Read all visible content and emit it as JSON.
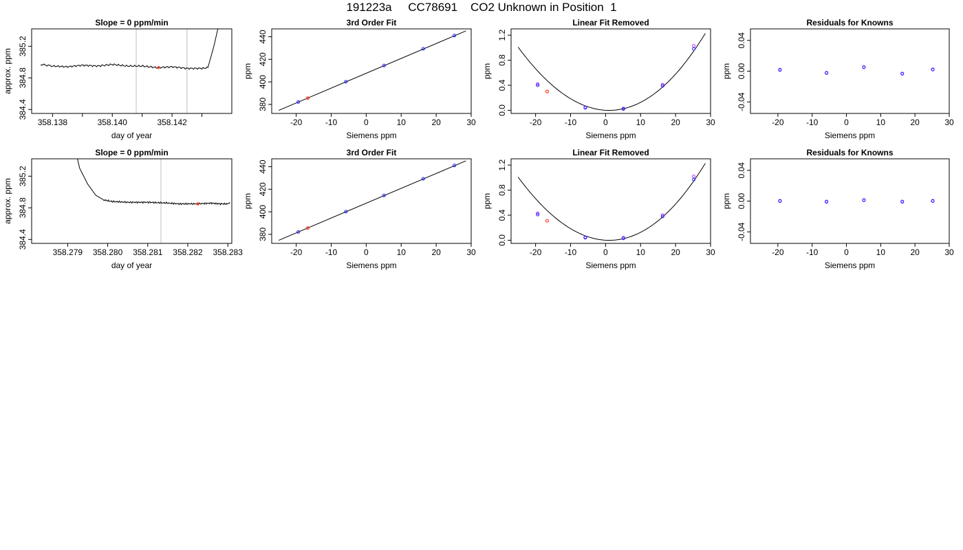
{
  "title": "191223a     CC78691    CO2 Unknown in Position  1",
  "colors": {
    "line": "#000000",
    "known": "#1f1fff",
    "unknown": "#ff3b1f",
    "fit2": "#b030ff",
    "vline": "#bebebe"
  },
  "chart_data": [
    {
      "type": "line",
      "title": "Slope =  0  ppm/min",
      "xlabel": "day of year",
      "ylabel": "approx. ppm",
      "xlim": [
        358.1373,
        358.144
      ],
      "ylim": [
        384.35,
        385.42
      ],
      "xticks": [
        358.138,
        358.139,
        358.14,
        358.141,
        358.142,
        358.143
      ],
      "xtick_labels": [
        "358.138",
        "",
        "358.140",
        "",
        "358.142",
        ""
      ],
      "yticks": [
        384.4,
        384.8,
        385.2
      ],
      "ytick_labels": [
        "384.4",
        "384.8",
        "385.2"
      ],
      "vlines": [
        358.1408,
        358.1425
      ],
      "trace": [
        [
          358.1376,
          384.97
        ],
        [
          358.138,
          384.95
        ],
        [
          358.1385,
          384.94
        ],
        [
          358.139,
          384.96
        ],
        [
          358.1395,
          384.95
        ],
        [
          358.14,
          384.97
        ],
        [
          358.1405,
          384.95
        ],
        [
          358.141,
          384.95
        ],
        [
          358.1415,
          384.93
        ],
        [
          358.142,
          384.94
        ],
        [
          358.1425,
          384.92
        ],
        [
          358.143,
          384.92
        ],
        [
          358.1432,
          384.93
        ],
        [
          358.1434,
          385.2
        ],
        [
          358.14355,
          385.45
        ]
      ],
      "unknown_point": [
        358.14155,
        384.93
      ]
    },
    {
      "type": "scatter",
      "title": "3rd Order Fit",
      "xlabel": "Siemens ppm",
      "ylabel": "ppm",
      "xlim": [
        -27,
        30
      ],
      "ylim": [
        372,
        447
      ],
      "xticks": [
        -20,
        -10,
        0,
        10,
        20,
        30
      ],
      "xtick_labels": [
        "-20",
        "-10",
        "0",
        "10",
        "20",
        "30"
      ],
      "yticks": [
        380,
        400,
        420,
        440
      ],
      "ytick_labels": [
        "380",
        "400",
        "420",
        "440"
      ],
      "fit_line": [
        [
          -25,
          374.7
        ],
        [
          28.5,
          445.2
        ]
      ],
      "knowns": [
        [
          -19.4,
          382.1
        ],
        [
          -5.8,
          400.1
        ],
        [
          5.1,
          414.5
        ],
        [
          16.3,
          429.3
        ],
        [
          25.2,
          441.1
        ]
      ],
      "unknown": [
        [
          -16.7,
          385.6
        ]
      ]
    },
    {
      "type": "scatter",
      "title": "Linear Fit Removed",
      "xlabel": "Siemens ppm",
      "ylabel": "ppm",
      "xlim": [
        -27,
        30
      ],
      "ylim": [
        -0.05,
        1.3
      ],
      "xticks": [
        -20,
        -10,
        0,
        10,
        20,
        30
      ],
      "xtick_labels": [
        "-20",
        "-10",
        "0",
        "10",
        "20",
        "30"
      ],
      "yticks": [
        0.0,
        0.4,
        0.8,
        1.2
      ],
      "ytick_labels": [
        "0.0",
        "0.4",
        "0.8",
        "1.2"
      ],
      "curve_coef": [
        0.001,
        -0.0032,
        0.00155,
        2.6e-06
      ],
      "curve_x": [
        -25,
        28.5
      ],
      "knowns": [
        [
          -19.4,
          0.4
        ],
        [
          -5.8,
          0.04
        ],
        [
          5.1,
          0.02
        ],
        [
          16.3,
          0.39
        ],
        [
          25.2,
          0.98
        ]
      ],
      "knowns_alt": [
        [
          -19.4,
          0.42
        ],
        [
          -5.8,
          0.05
        ],
        [
          5.1,
          0.03
        ],
        [
          16.3,
          0.41
        ],
        [
          25.2,
          1.03
        ]
      ],
      "unknown": [
        [
          -16.7,
          0.3
        ]
      ]
    },
    {
      "type": "scatter",
      "title": "Residuals for Knowns",
      "xlabel": "Siemens ppm",
      "ylabel": "ppm",
      "xlim": [
        -28,
        30
      ],
      "ylim": [
        -0.055,
        0.055
      ],
      "xticks": [
        -20,
        -10,
        0,
        10,
        20,
        30
      ],
      "xtick_labels": [
        "-20",
        "-10",
        "0",
        "10",
        "20",
        "30"
      ],
      "yticks": [
        -0.04,
        0.0,
        0.04
      ],
      "ytick_labels": [
        "-0.04",
        "0.00",
        "0.04"
      ],
      "knowns": [
        [
          -19.4,
          0.0015
        ],
        [
          -5.8,
          -0.0025
        ],
        [
          5.1,
          0.005
        ],
        [
          16.3,
          -0.0035
        ],
        [
          25.2,
          0.002
        ]
      ],
      "knowns_alt": [
        [
          -19.4,
          0.002
        ],
        [
          -5.8,
          -0.002
        ],
        [
          5.1,
          0.0055
        ],
        [
          16.3,
          -0.003
        ],
        [
          25.2,
          0.0025
        ]
      ]
    },
    {
      "type": "line",
      "title": "Slope =  0  ppm/min",
      "xlabel": "day of year",
      "ylabel": "approx. ppm",
      "xlim": [
        358.2781,
        358.2831
      ],
      "ylim": [
        384.35,
        385.42
      ],
      "xticks": [
        358.279,
        358.28,
        358.281,
        358.282,
        358.283
      ],
      "xtick_labels": [
        "358.279",
        "358.280",
        "358.281",
        "358.282",
        "358.283"
      ],
      "yticks": [
        384.4,
        384.8,
        385.2
      ],
      "ytick_labels": [
        "384.4",
        "384.8",
        "385.2"
      ],
      "vlines": [
        358.28133,
        358.2831
      ],
      "trace": [
        [
          358.27923,
          385.45
        ],
        [
          358.2793,
          385.3
        ],
        [
          358.2795,
          385.1
        ],
        [
          358.2797,
          384.96
        ],
        [
          358.2799,
          384.9
        ],
        [
          358.2801,
          384.88
        ],
        [
          358.2805,
          384.87
        ],
        [
          358.281,
          384.87
        ],
        [
          358.2815,
          384.86
        ],
        [
          358.2818,
          384.85
        ],
        [
          358.2822,
          384.85
        ],
        [
          358.2826,
          384.86
        ],
        [
          358.2828,
          384.85
        ],
        [
          358.283,
          384.85
        ],
        [
          358.28305,
          384.87
        ]
      ],
      "unknown_point": [
        358.28225,
        384.85
      ]
    },
    {
      "type": "scatter",
      "title": "3rd Order Fit",
      "xlabel": "Siemens ppm",
      "ylabel": "ppm",
      "xlim": [
        -27,
        30
      ],
      "ylim": [
        372,
        447
      ],
      "xticks": [
        -20,
        -10,
        0,
        10,
        20,
        30
      ],
      "xtick_labels": [
        "-20",
        "-10",
        "0",
        "10",
        "20",
        "30"
      ],
      "yticks": [
        380,
        400,
        420,
        440
      ],
      "ytick_labels": [
        "380",
        "400",
        "420",
        "440"
      ],
      "fit_line": [
        [
          -25,
          374.7
        ],
        [
          28.5,
          445.2
        ]
      ],
      "knowns": [
        [
          -19.4,
          382.1
        ],
        [
          -5.8,
          400.1
        ],
        [
          5.1,
          414.5
        ],
        [
          16.3,
          429.3
        ],
        [
          25.2,
          441.1
        ]
      ],
      "unknown": [
        [
          -16.7,
          385.6
        ]
      ]
    },
    {
      "type": "scatter",
      "title": "Linear Fit Removed",
      "xlabel": "Siemens ppm",
      "ylabel": "ppm",
      "xlim": [
        -27,
        30
      ],
      "ylim": [
        -0.05,
        1.3
      ],
      "xticks": [
        -20,
        -10,
        0,
        10,
        20,
        30
      ],
      "xtick_labels": [
        "-20",
        "-10",
        "0",
        "10",
        "20",
        "30"
      ],
      "yticks": [
        0.0,
        0.4,
        0.8,
        1.2
      ],
      "ytick_labels": [
        "0.0",
        "0.4",
        "0.8",
        "1.2"
      ],
      "curve_coef": [
        0.001,
        -0.0032,
        0.00155,
        2.6e-06
      ],
      "curve_x": [
        -25,
        28.5
      ],
      "knowns": [
        [
          -19.4,
          0.41
        ],
        [
          -5.8,
          0.04
        ],
        [
          5.1,
          0.03
        ],
        [
          16.3,
          0.38
        ],
        [
          25.2,
          0.97
        ]
      ],
      "knowns_alt": [
        [
          -19.4,
          0.43
        ],
        [
          -5.8,
          0.05
        ],
        [
          5.1,
          0.04
        ],
        [
          16.3,
          0.4
        ],
        [
          25.2,
          1.02
        ]
      ],
      "unknown": [
        [
          -16.7,
          0.31
        ]
      ]
    },
    {
      "type": "scatter",
      "title": "Residuals for Knowns",
      "xlabel": "Siemens ppm",
      "ylabel": "ppm",
      "xlim": [
        -28,
        30
      ],
      "ylim": [
        -0.055,
        0.055
      ],
      "xticks": [
        -20,
        -10,
        0,
        10,
        20,
        30
      ],
      "xtick_labels": [
        "-20",
        "-10",
        "0",
        "10",
        "20",
        "30"
      ],
      "yticks": [
        -0.04,
        0.0,
        0.04
      ],
      "ytick_labels": [
        "-0.04",
        "0.00",
        "0.04"
      ],
      "knowns": [
        [
          -19.4,
          0.0
        ],
        [
          -5.8,
          -0.001
        ],
        [
          5.1,
          0.001
        ],
        [
          16.3,
          -0.001
        ],
        [
          25.2,
          0.0
        ]
      ],
      "knowns_alt": [
        [
          -19.4,
          0.0005
        ],
        [
          -5.8,
          -0.0005
        ],
        [
          5.1,
          0.0015
        ],
        [
          16.3,
          -0.0005
        ],
        [
          25.2,
          0.0005
        ]
      ]
    }
  ]
}
